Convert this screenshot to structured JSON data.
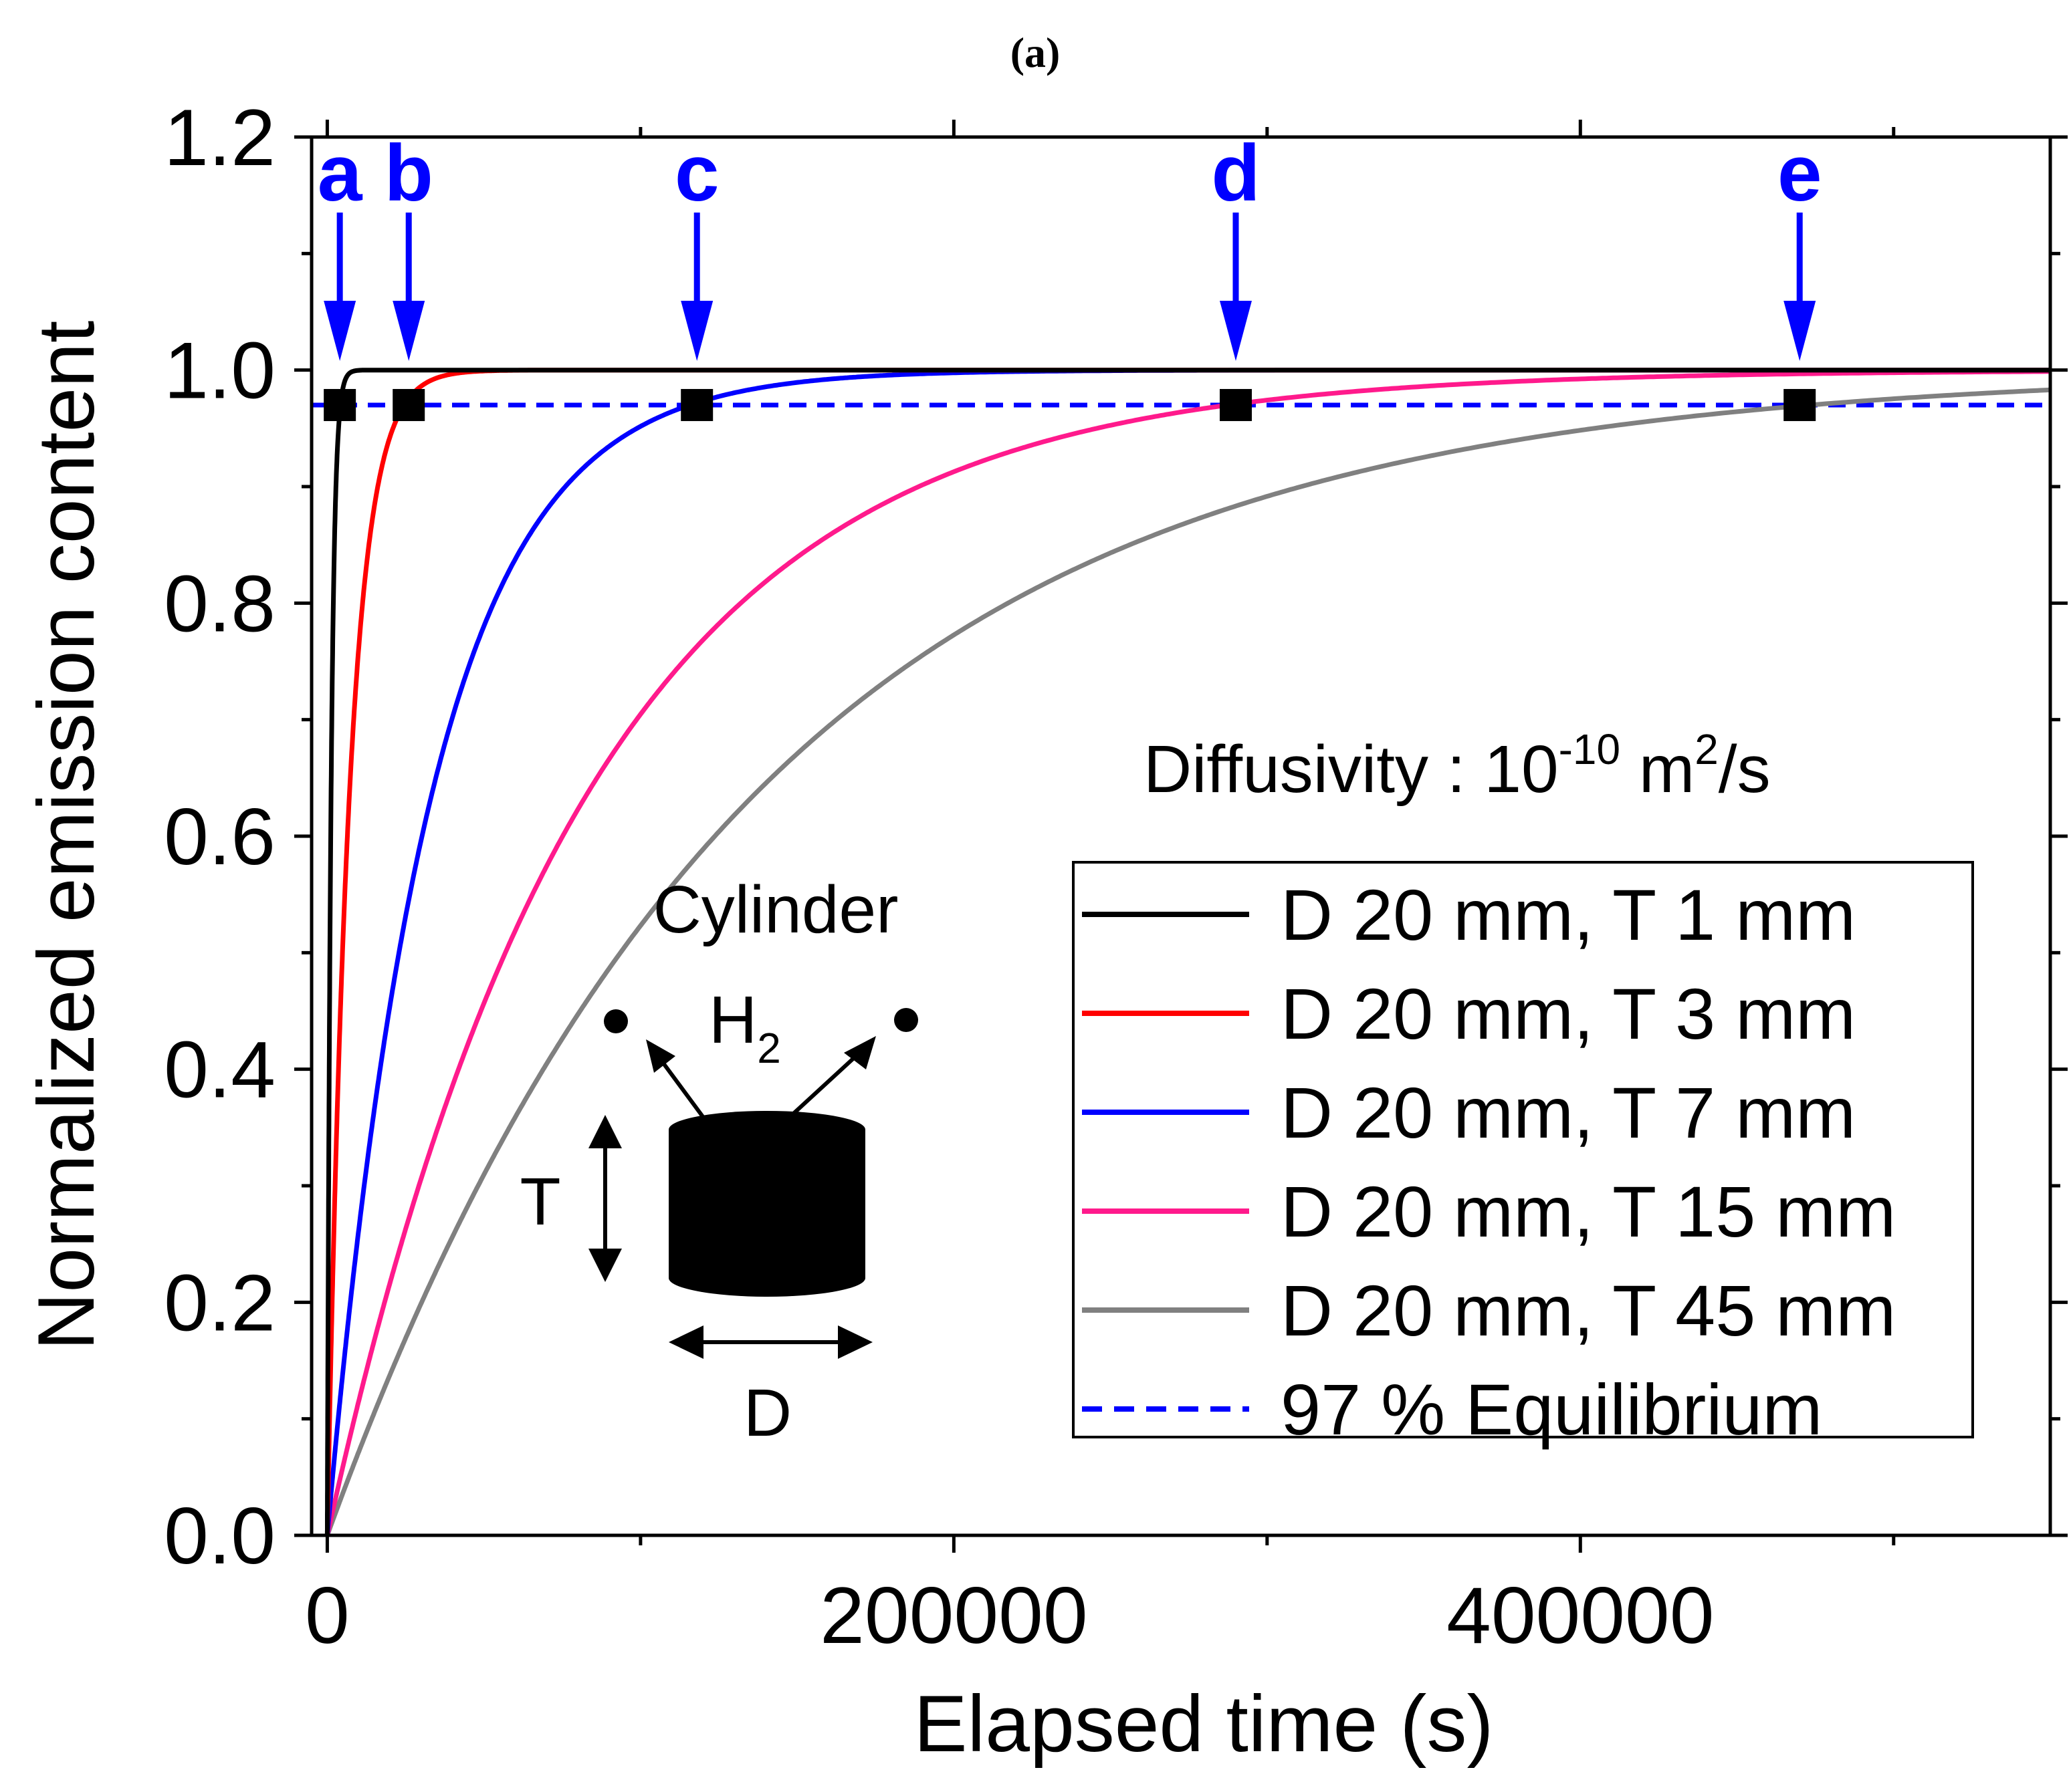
{
  "chart_data": {
    "type": "line",
    "panel_label": "(a)",
    "xlabel": "Elapsed time (s)",
    "ylabel": "Normalized emission content",
    "xlim": [
      -5000,
      550000
    ],
    "ylim": [
      0.0,
      1.2
    ],
    "x_ticks": [
      0,
      200000,
      400000
    ],
    "x_tick_labels": [
      "0",
      "200000",
      "400000"
    ],
    "x_minor_ticks": [
      100000,
      300000,
      500000
    ],
    "y_ticks": [
      0.0,
      0.2,
      0.4,
      0.6,
      0.8,
      1.0,
      1.2
    ],
    "y_tick_labels": [
      "0.0",
      "0.2",
      "0.4",
      "0.6",
      "0.8",
      "1.0",
      "1.2"
    ],
    "y_minor_ticks": [
      0.1,
      0.3,
      0.5,
      0.7,
      0.9,
      1.1
    ],
    "grid": false,
    "legend_position": "bottom-right",
    "annotation_text": {
      "prefix": "Diffusivity : 10",
      "exp": "-10",
      "mid": " m",
      "sq": "2",
      "suffix": "/s"
    },
    "series": [
      {
        "name": "D 20 mm, T 1 mm",
        "color": "#000000",
        "style": "solid",
        "tau": 1200,
        "t97": 4000
      },
      {
        "name": "D 20 mm, T 3 mm",
        "color": "#ff0000",
        "style": "solid",
        "tau": 7000,
        "t97": 26000
      },
      {
        "name": "D 20 mm, T 7 mm",
        "color": "#0000ff",
        "style": "solid",
        "tau": 33000,
        "t97": 118000
      },
      {
        "name": "D 20 mm, T 15 mm",
        "color": "#ff1a8c",
        "style": "solid",
        "tau": 82000,
        "t97": 290000
      },
      {
        "name": "D 20 mm, T 45 mm",
        "color": "#808080",
        "style": "solid",
        "tau": 135000,
        "t97": 470000
      },
      {
        "name": "97 % Equilibrium",
        "color": "#0000ff",
        "style": "dashed",
        "value": 0.97
      }
    ],
    "markers": [
      {
        "label": "a",
        "x": 4000,
        "y": 0.97
      },
      {
        "label": "b",
        "x": 26000,
        "y": 0.97
      },
      {
        "label": "c",
        "x": 118000,
        "y": 0.97
      },
      {
        "label": "d",
        "x": 290000,
        "y": 0.97
      },
      {
        "label": "e",
        "x": 470000,
        "y": 0.97
      }
    ],
    "marker_color": "#0000ff",
    "inset": {
      "title": "Cylinder",
      "gas": "H",
      "gas_sub": "2",
      "thickness_label": "T",
      "diameter_label": "D"
    }
  }
}
